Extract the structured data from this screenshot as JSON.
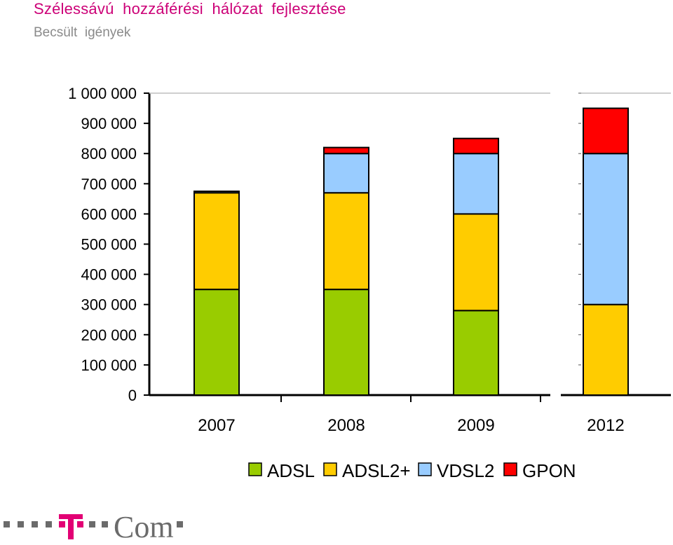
{
  "header": {
    "title": "Szélessávú  hozzáférési  hálózat  fejlesztése",
    "subtitle": "Becsült  igények"
  },
  "chart_data": {
    "type": "bar",
    "stacked": true,
    "categories": [
      "2007",
      "2008",
      "2009",
      "2012"
    ],
    "series": [
      {
        "name": "ADSL",
        "color": "#99cc00",
        "values": [
          350000,
          350000,
          280000,
          0
        ]
      },
      {
        "name": "ADSL2+",
        "color": "#ffcc00",
        "values": [
          320000,
          320000,
          320000,
          300000
        ]
      },
      {
        "name": "VDSL2",
        "color": "#99ccff",
        "values": [
          5000,
          130000,
          200000,
          500000
        ]
      },
      {
        "name": "GPON",
        "color": "#ff0000",
        "values": [
          0,
          20000,
          50000,
          150000
        ]
      }
    ],
    "ylim": [
      0,
      1000000
    ],
    "yticks": [
      {
        "value": 0,
        "label": "0"
      },
      {
        "value": 100000,
        "label": "100 000"
      },
      {
        "value": 200000,
        "label": "200 000"
      },
      {
        "value": 300000,
        "label": "300 000"
      },
      {
        "value": 400000,
        "label": "400 000"
      },
      {
        "value": 500000,
        "label": "500 000"
      },
      {
        "value": 600000,
        "label": "600 000"
      },
      {
        "value": 700000,
        "label": "700 000"
      },
      {
        "value": 800000,
        "label": "800 000"
      },
      {
        "value": 900000,
        "label": "900 000"
      },
      {
        "value": 1000000,
        "label": "1 000 000"
      }
    ],
    "axis_break_before_last": true,
    "grid": false,
    "legend_position": "bottom"
  },
  "logo": {
    "text": "Com",
    "mark": "T",
    "brand_color": "#e20074"
  }
}
